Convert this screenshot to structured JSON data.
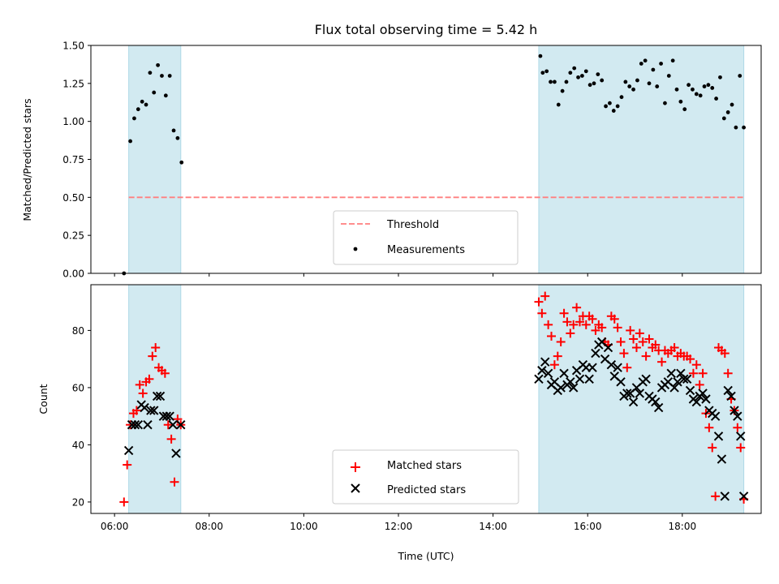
{
  "chart_data": {
    "type": "scatter",
    "title": "Flux total observing time = 5.42 h",
    "xlabel": "Time (UTC)",
    "x_ticks": [
      "06:00",
      "08:00",
      "10:00",
      "12:00",
      "14:00",
      "16:00",
      "18:00"
    ],
    "x_range": [
      "05:30",
      "19:40"
    ],
    "shaded_periods": [
      {
        "start": "06:18",
        "end": "07:24"
      },
      {
        "start": "14:58",
        "end": "19:18"
      }
    ],
    "colors": {
      "shade": "#add8e6",
      "threshold": "#ff7f7f",
      "measurements": "#000000",
      "matched": "#ff0000",
      "predicted": "#000000"
    },
    "top_panel": {
      "ylabel": "Matched/Predicted stars",
      "ylim": [
        0.0,
        1.5
      ],
      "y_ticks": [
        "0.00",
        "0.25",
        "0.50",
        "0.75",
        "1.00",
        "1.25",
        "1.50"
      ],
      "legend_position": "bottom-center",
      "threshold": {
        "name": "Threshold",
        "value": 0.5
      },
      "measurements": {
        "name": "Measurements",
        "x": [
          "06:12",
          "06:20",
          "06:25",
          "06:30",
          "06:35",
          "06:40",
          "06:45",
          "06:50",
          "06:55",
          "07:00",
          "07:05",
          "07:10",
          "07:15",
          "07:20",
          "07:25",
          "15:00",
          "15:03",
          "15:08",
          "15:13",
          "15:18",
          "15:23",
          "15:28",
          "15:33",
          "15:38",
          "15:43",
          "15:48",
          "15:53",
          "15:58",
          "16:03",
          "16:08",
          "16:13",
          "16:18",
          "16:23",
          "16:28",
          "16:33",
          "16:38",
          "16:43",
          "16:48",
          "16:53",
          "16:58",
          "17:03",
          "17:08",
          "17:13",
          "17:18",
          "17:23",
          "17:28",
          "17:33",
          "17:38",
          "17:43",
          "17:48",
          "17:53",
          "17:58",
          "18:03",
          "18:08",
          "18:13",
          "18:18",
          "18:23",
          "18:28",
          "18:33",
          "18:38",
          "18:43",
          "18:48",
          "18:53",
          "18:58",
          "19:03",
          "19:08",
          "19:13",
          "19:18"
        ],
        "y": [
          0.0,
          0.87,
          1.02,
          1.08,
          1.13,
          1.11,
          1.32,
          1.19,
          1.37,
          1.3,
          1.17,
          1.3,
          0.94,
          0.89,
          0.73,
          1.43,
          1.32,
          1.33,
          1.26,
          1.26,
          1.11,
          1.2,
          1.26,
          1.32,
          1.35,
          1.29,
          1.3,
          1.33,
          1.24,
          1.25,
          1.31,
          1.27,
          1.1,
          1.12,
          1.07,
          1.1,
          1.16,
          1.26,
          1.23,
          1.21,
          1.27,
          1.38,
          1.4,
          1.25,
          1.34,
          1.23,
          1.38,
          1.12,
          1.3,
          1.4,
          1.21,
          1.13,
          1.08,
          1.24,
          1.21,
          1.18,
          1.17,
          1.23,
          1.24,
          1.22,
          1.15,
          1.29,
          1.02,
          1.06,
          1.11,
          0.96,
          1.3,
          0.96
        ]
      }
    },
    "bottom_panel": {
      "ylabel": "Count",
      "ylim": [
        16,
        96
      ],
      "y_ticks": [
        "20",
        "40",
        "60",
        "80"
      ],
      "legend_position": "bottom-center",
      "series": [
        {
          "name": "Matched stars",
          "marker": "+",
          "x": [
            "06:12",
            "06:16",
            "06:20",
            "06:24",
            "06:28",
            "06:32",
            "06:36",
            "06:40",
            "06:44",
            "06:48",
            "06:52",
            "06:56",
            "07:00",
            "07:04",
            "07:08",
            "07:12",
            "07:16",
            "07:20",
            "07:24",
            "14:58",
            "15:02",
            "15:06",
            "15:10",
            "15:14",
            "15:18",
            "15:22",
            "15:26",
            "15:30",
            "15:34",
            "15:38",
            "15:42",
            "15:46",
            "15:50",
            "15:54",
            "15:58",
            "16:02",
            "16:06",
            "16:10",
            "16:14",
            "16:18",
            "16:22",
            "16:26",
            "16:30",
            "16:34",
            "16:38",
            "16:42",
            "16:46",
            "16:50",
            "16:54",
            "16:58",
            "17:02",
            "17:06",
            "17:10",
            "17:14",
            "17:18",
            "17:22",
            "17:26",
            "17:30",
            "17:34",
            "17:38",
            "17:42",
            "17:46",
            "17:50",
            "17:54",
            "17:58",
            "18:02",
            "18:06",
            "18:10",
            "18:14",
            "18:18",
            "18:22",
            "18:26",
            "18:30",
            "18:34",
            "18:38",
            "18:42",
            "18:46",
            "18:50",
            "18:54",
            "18:58",
            "19:02",
            "19:06",
            "19:10",
            "19:14",
            "19:18"
          ],
          "y": [
            20,
            33,
            47,
            51,
            52,
            61,
            58,
            62,
            63,
            71,
            74,
            67,
            66,
            65,
            47,
            42,
            27,
            49,
            47,
            90,
            86,
            92,
            82,
            78,
            68,
            71,
            76,
            86,
            83,
            79,
            82,
            88,
            83,
            85,
            82,
            85,
            84,
            80,
            82,
            81,
            76,
            75,
            85,
            84,
            81,
            76,
            72,
            67,
            80,
            77,
            74,
            79,
            76,
            71,
            77,
            74,
            75,
            73,
            69,
            73,
            72,
            73,
            74,
            71,
            72,
            71,
            71,
            70,
            65,
            68,
            61,
            65,
            51,
            46,
            39,
            22,
            74,
            73,
            72,
            65,
            56,
            52,
            46,
            39,
            21
          ]
        },
        {
          "name": "Predicted stars",
          "marker": "x",
          "x": [
            "06:18",
            "06:22",
            "06:26",
            "06:30",
            "06:34",
            "06:38",
            "06:42",
            "06:46",
            "06:50",
            "06:54",
            "06:58",
            "07:02",
            "07:06",
            "07:10",
            "07:14",
            "07:18",
            "07:24",
            "14:58",
            "15:02",
            "15:06",
            "15:10",
            "15:14",
            "15:18",
            "15:22",
            "15:26",
            "15:30",
            "15:34",
            "15:38",
            "15:42",
            "15:46",
            "15:50",
            "15:54",
            "15:58",
            "16:02",
            "16:06",
            "16:10",
            "16:14",
            "16:18",
            "16:22",
            "16:26",
            "16:30",
            "16:34",
            "16:38",
            "16:42",
            "16:46",
            "16:50",
            "16:54",
            "16:58",
            "17:02",
            "17:06",
            "17:10",
            "17:14",
            "17:18",
            "17:22",
            "17:26",
            "17:30",
            "17:34",
            "17:38",
            "17:42",
            "17:46",
            "17:50",
            "17:54",
            "17:58",
            "18:02",
            "18:06",
            "18:10",
            "18:14",
            "18:18",
            "18:22",
            "18:26",
            "18:30",
            "18:34",
            "18:38",
            "18:42",
            "18:46",
            "18:50",
            "18:54",
            "18:58",
            "19:02",
            "19:06",
            "19:10",
            "19:14",
            "19:18"
          ],
          "y": [
            38,
            47,
            47,
            47,
            54,
            53,
            47,
            52,
            52,
            57,
            57,
            50,
            50,
            50,
            47,
            37,
            47,
            63,
            66,
            69,
            65,
            61,
            62,
            59,
            60,
            65,
            61,
            62,
            60,
            66,
            63,
            68,
            67,
            63,
            67,
            72,
            75,
            76,
            70,
            74,
            68,
            64,
            67,
            62,
            57,
            58,
            58,
            55,
            60,
            58,
            62,
            63,
            57,
            56,
            55,
            53,
            60,
            61,
            62,
            65,
            60,
            62,
            65,
            63,
            63,
            59,
            56,
            55,
            57,
            58,
            56,
            52,
            51,
            50,
            43,
            35,
            22,
            59,
            57,
            52,
            50,
            43,
            22
          ]
        }
      ]
    }
  }
}
